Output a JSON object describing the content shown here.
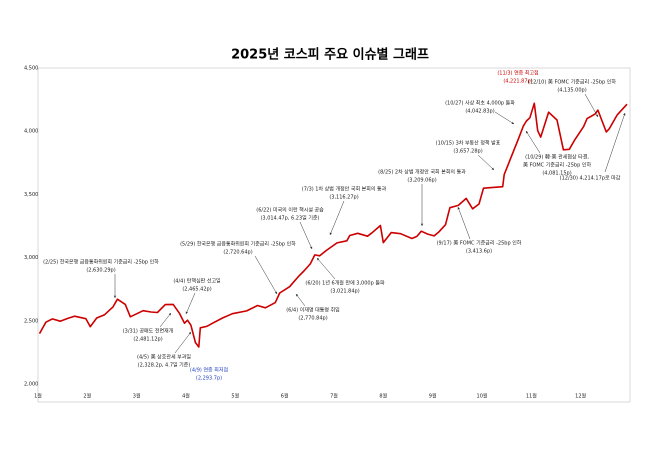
{
  "chart_data": {
    "type": "line",
    "title": "2025년  코스피 주요 이슈별 그래프",
    "x": [
      1.03,
      1.16,
      1.29,
      1.45,
      1.61,
      1.74,
      1.97,
      2.06,
      2.19,
      2.35,
      2.52,
      2.61,
      2.77,
      2.87,
      3.13,
      3.29,
      3.42,
      3.58,
      3.74,
      3.87,
      3.97,
      4.03,
      4.1,
      4.19,
      4.26,
      4.29,
      4.42,
      4.55,
      4.74,
      4.94,
      5.23,
      5.45,
      5.61,
      5.81,
      5.9,
      6.1,
      6.29,
      6.39,
      6.52,
      6.61,
      6.71,
      6.84,
      7.06,
      7.26,
      7.32,
      7.48,
      7.68,
      7.77,
      7.94,
      8.0,
      8.16,
      8.35,
      8.58,
      8.68,
      8.77,
      8.9,
      9.03,
      9.13,
      9.26,
      9.35,
      9.52,
      9.68,
      9.81,
      9.94,
      10.03,
      10.42,
      10.45,
      10.61,
      10.74,
      10.84,
      10.9,
      10.97,
      11.06,
      11.13,
      11.19,
      11.35,
      11.52,
      11.65,
      11.77,
      11.87,
      12.06,
      12.13,
      12.29,
      12.35,
      12.52,
      12.58,
      12.74,
      12.94
    ],
    "series": [
      {
        "color": "#cc0000",
        "values": [
          2399,
          2489,
          2515,
          2497,
          2520,
          2536,
          2517,
          2453,
          2522,
          2548,
          2610,
          2671,
          2630,
          2532,
          2580,
          2570,
          2566,
          2628,
          2630,
          2557,
          2481,
          2505,
          2465,
          2328,
          2293,
          2445,
          2456,
          2483,
          2522,
          2556,
          2578,
          2621,
          2603,
          2644,
          2720,
          2770,
          2855,
          2894,
          2950,
          3021,
          3014,
          3055,
          3116,
          3133,
          3175,
          3192,
          3169,
          3196,
          3254,
          3119,
          3198,
          3189,
          3151,
          3168,
          3209,
          3186,
          3172,
          3205,
          3260,
          3395,
          3413,
          3468,
          3386,
          3424,
          3549,
          3561,
          3657,
          3814,
          3941,
          4042,
          4081,
          4107,
          4221,
          4004,
          3953,
          4150,
          4089,
          3853,
          3857,
          3926,
          4036,
          4100,
          4135,
          4167,
          3994,
          4020,
          4129,
          4214
        ]
      }
    ],
    "xlim": [
      1,
      13
    ],
    "xticks": [
      {
        "value": 1,
        "label": "1월"
      },
      {
        "value": 2,
        "label": "2월"
      },
      {
        "value": 3,
        "label": "3월"
      },
      {
        "value": 4,
        "label": "4월"
      },
      {
        "value": 5,
        "label": "5월"
      },
      {
        "value": 6,
        "label": "6월"
      },
      {
        "value": 7,
        "label": "7월"
      },
      {
        "value": 8,
        "label": "8월"
      },
      {
        "value": 9,
        "label": "9월"
      },
      {
        "value": 10,
        "label": "10월"
      },
      {
        "value": 11,
        "label": "11월"
      },
      {
        "value": 12,
        "label": "12월"
      }
    ],
    "ylim": [
      2000,
      4500
    ],
    "yticks": [
      {
        "value": 2000,
        "label": "2,000"
      },
      {
        "value": 2500,
        "label": "2,500"
      },
      {
        "value": 3000,
        "label": "3,000"
      },
      {
        "value": 3500,
        "label": "3,500"
      },
      {
        "value": 4000,
        "label": "4,000"
      },
      {
        "value": 4500,
        "label": "4,500"
      }
    ],
    "annotations": [
      {
        "lines": [
          "(2/25) 한국은행 금융통화위원회 기준금리 -25bp 인하",
          "(2,630.29p)"
        ]
      },
      {
        "lines": [
          "(3/31) 공매도 전면재개",
          "(2,481.12p)"
        ]
      },
      {
        "lines": [
          "(4/4) 탄핵심판 선고일",
          "(2,465.42p)"
        ]
      },
      {
        "lines": [
          "(4/5) 美 상호관세 부과일",
          "(2,328.2p, 4.7일 기준)"
        ]
      },
      {
        "lines": [
          "(4/9) 연중 최저점",
          "(2,293.7p)"
        ],
        "color": "#1f3fbf"
      },
      {
        "lines": [
          "(5/29) 한국은행 금융통화위원회 기준금리 -25bp 인하",
          "(2,720.64p)"
        ]
      },
      {
        "lines": [
          "(6/4) 이재명 대통령 취임",
          "(2,770.84p)"
        ]
      },
      {
        "lines": [
          "(6/22) 미국의 이란 핵시설 공습",
          "(3,014.47p, 6.23일 기준)"
        ]
      },
      {
        "lines": [
          "(6/20) 1년 6개월 만에 3,000p 돌파",
          "(3,021.84p)"
        ]
      },
      {
        "lines": [
          "(7/3) 1차 상법 개정안 국회 본회의 통과",
          "(3,116.27p)"
        ]
      },
      {
        "lines": [
          "(8/25) 2차 상법 개정안 국회 본회의 통과",
          "(3,209.06p)"
        ]
      },
      {
        "lines": [
          "(9/17) 美 FOMC 기준금리 -25bp 인하",
          "(3,413.6p)"
        ]
      },
      {
        "lines": [
          "(10/15) 3차 부동산 정책 발표",
          "(3,657.28p)"
        ]
      },
      {
        "lines": [
          "(10/27) 사상 최초 4,000p 돌파",
          "(4,042.83p)"
        ]
      },
      {
        "lines": [
          "(11/3) 연중 최고점",
          "(4,221.87p)"
        ],
        "color": "#cc0000"
      },
      {
        "lines": [
          "(10/29) 韓·美 관세협상 타결,",
          "美 FOMC 기준금리 -25bp 인하",
          "(4,081.15p)"
        ]
      },
      {
        "lines": [
          "(12/10) 美 FOMC 기준금리 -25bp 인하",
          "(4,135.00p)"
        ]
      },
      {
        "lines": [
          "(12/30) 4,214.17p로 마감"
        ]
      }
    ]
  }
}
